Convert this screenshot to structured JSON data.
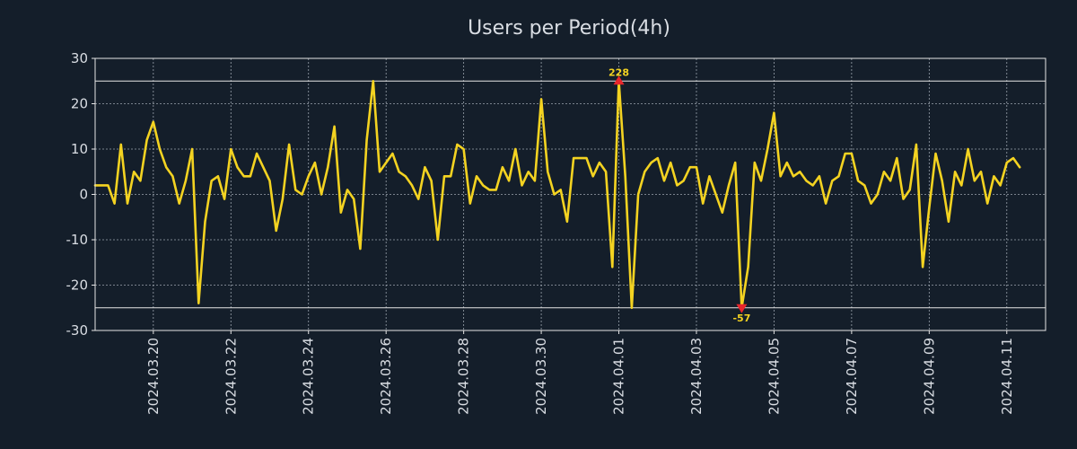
{
  "chart_data": {
    "type": "line",
    "title": "Users per Period(4h)",
    "xlabel": "",
    "ylabel": "",
    "ylim": [
      -30,
      30
    ],
    "xlim": [
      0,
      147
    ],
    "yticks": [
      -30,
      -20,
      -10,
      0,
      10,
      20,
      30
    ],
    "ytick_labels": [
      "-30",
      "-20",
      "-10",
      "0",
      "10",
      "20",
      "30"
    ],
    "xticks": [
      {
        "pos": 9,
        "label": "2024.03.20"
      },
      {
        "pos": 21,
        "label": "2024.03.22"
      },
      {
        "pos": 33,
        "label": "2024.03.24"
      },
      {
        "pos": 45,
        "label": "2024.03.26"
      },
      {
        "pos": 57,
        "label": "2024.03.28"
      },
      {
        "pos": 69,
        "label": "2024.03.30"
      },
      {
        "pos": 81,
        "label": "2024.04.01"
      },
      {
        "pos": 93,
        "label": "2024.04.03"
      },
      {
        "pos": 105,
        "label": "2024.04.05"
      },
      {
        "pos": 117,
        "label": "2024.04.07"
      },
      {
        "pos": 129,
        "label": "2024.04.09"
      },
      {
        "pos": 141,
        "label": "2024.04.11"
      }
    ],
    "hlines": [
      25,
      -25
    ],
    "grid": true,
    "series": [
      {
        "name": "Users per Period(4h)",
        "color": "#f4d321",
        "values": [
          2,
          2,
          2,
          -2,
          11,
          -2,
          5,
          3,
          12,
          16,
          10,
          6,
          4,
          -2,
          3,
          10,
          -24,
          -6,
          3,
          4,
          -1,
          10,
          6,
          4,
          4,
          9,
          6,
          3,
          -8,
          -1,
          11,
          1,
          0,
          4,
          7,
          0,
          6,
          15,
          -4,
          1,
          -1,
          -12,
          12,
          25,
          5,
          7,
          9,
          5,
          4,
          2,
          -1,
          6,
          3,
          -10,
          4,
          4,
          11,
          10,
          -2,
          4,
          2,
          1,
          1,
          6,
          3,
          10,
          2,
          5,
          3,
          21,
          5,
          0,
          1,
          -6,
          8,
          8,
          8,
          4,
          7,
          5,
          -16,
          25,
          4,
          -25,
          0,
          5,
          7,
          8,
          3,
          7,
          2,
          3,
          6,
          6,
          -2,
          4,
          0,
          -4,
          2,
          7,
          -25,
          -16,
          7,
          3,
          10,
          18,
          4,
          7,
          4,
          5,
          3,
          2,
          4,
          -2,
          3,
          4,
          9,
          9,
          3,
          2,
          -2,
          0,
          5,
          3,
          8,
          -1,
          1,
          11,
          -16,
          -3,
          9,
          3,
          -6,
          5,
          2,
          10,
          3,
          5,
          -2,
          4,
          2,
          7,
          8,
          6
        ]
      }
    ],
    "markers": [
      {
        "index": 81,
        "value": 25,
        "label": "228",
        "direction": "up",
        "color": "#e8262c"
      },
      {
        "index": 100,
        "value": -25,
        "label": "-57",
        "direction": "down",
        "color": "#e8262c"
      }
    ]
  }
}
